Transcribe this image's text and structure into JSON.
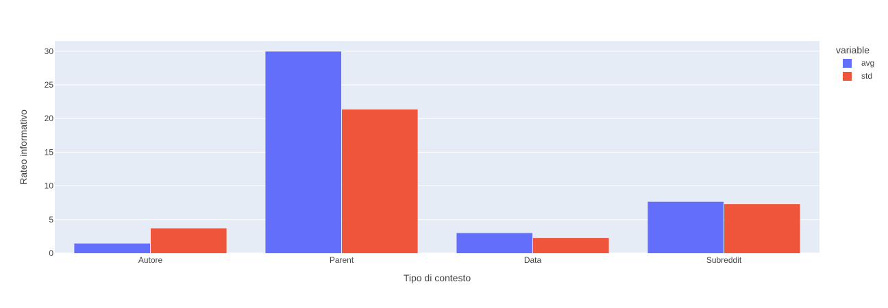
{
  "chart_data": {
    "type": "bar",
    "barmode": "grouped",
    "categories": [
      "Autore",
      "Parent",
      "Data",
      "Subreddit"
    ],
    "series": [
      {
        "name": "avg",
        "values": [
          1.45,
          29.95,
          3.0,
          7.65
        ],
        "color": "#636efa"
      },
      {
        "name": "std",
        "values": [
          3.7,
          21.35,
          2.25,
          7.3
        ],
        "color": "#ef553b"
      }
    ],
    "xlabel": "Tipo di contesto",
    "ylabel": "Rateo informativo",
    "ylim": [
      0,
      31.5
    ],
    "yticks": [
      "0",
      "5",
      "10",
      "15",
      "20",
      "25",
      "30"
    ],
    "grid": true,
    "plot_background": "#e5ecf6",
    "legend": {
      "title": "variable",
      "placement": "top-right"
    }
  }
}
